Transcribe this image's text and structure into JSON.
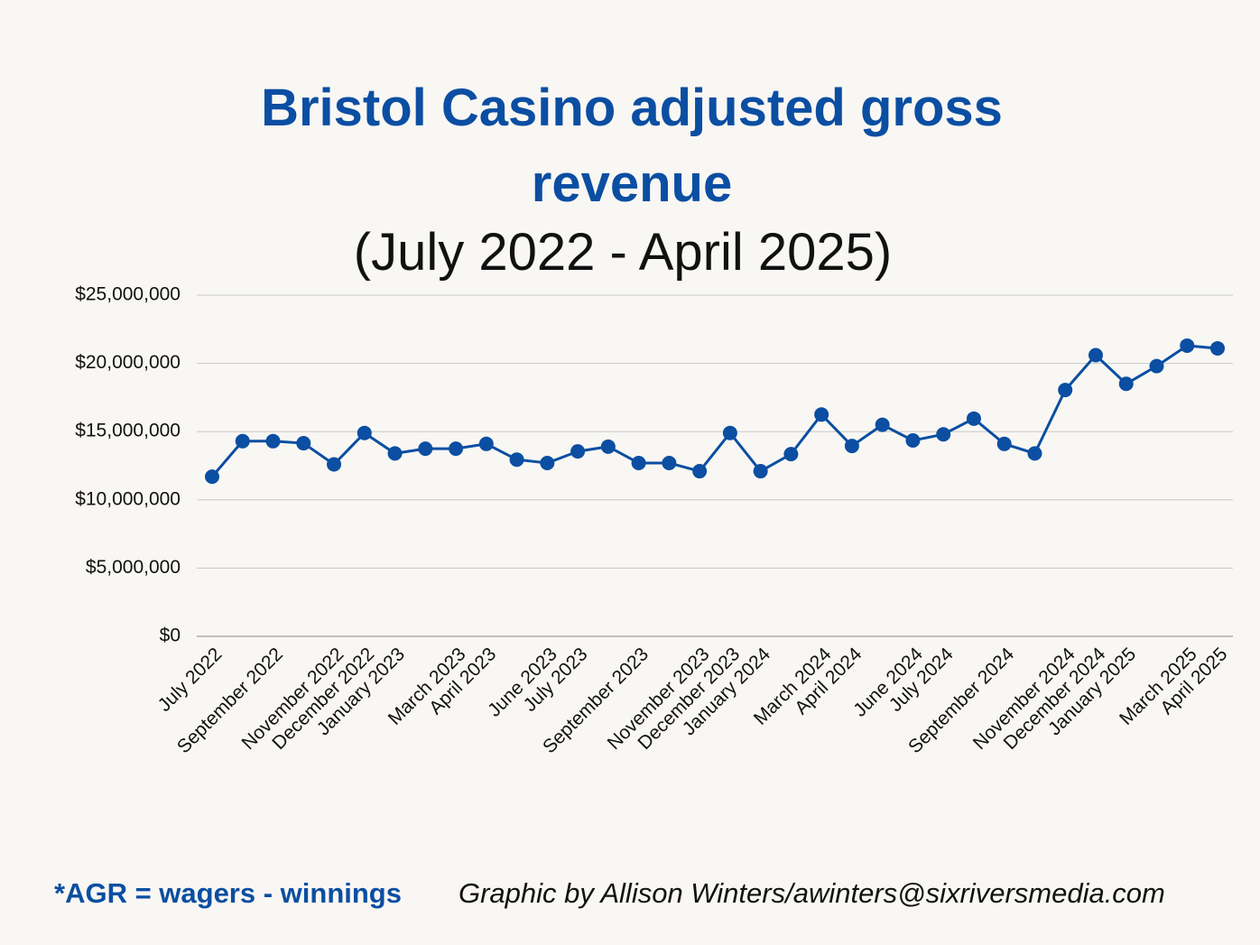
{
  "chart_data": {
    "type": "line",
    "title": "Bristol Casino adjusted gross revenue",
    "subtitle": "(July 2022 - April 2025)",
    "annotations": [
      "*AGR = wagers - winnings",
      "Graphic by Allison Winters/awinters@sixriversmedia.com"
    ],
    "categories": [
      "July 2022",
      null,
      "September 2022",
      null,
      "November 2022",
      "December 2022",
      "January 2023",
      null,
      "March 2023",
      "April 2023",
      null,
      "June 2023",
      "July 2023",
      null,
      "September 2023",
      null,
      "November 2023",
      "December 2023",
      "January 2024",
      null,
      "March 2024",
      "April 2024",
      null,
      "June 2024",
      "July 2024",
      null,
      "September 2024",
      null,
      "November 2024",
      "December 2024",
      "January 2025",
      null,
      "March 2025",
      "April 2025"
    ],
    "series": [
      {
        "color": "#0b4ea2",
        "values": [
          11700000,
          14300000,
          14300000,
          14150000,
          12600000,
          14900000,
          13400000,
          13750000,
          13750000,
          14100000,
          12950000,
          12700000,
          13550000,
          13900000,
          12700000,
          12700000,
          12100000,
          14900000,
          12100000,
          13350000,
          16250000,
          13950000,
          15500000,
          14350000,
          14800000,
          15950000,
          14100000,
          13400000,
          18050000,
          20600000,
          18500000,
          19800000,
          21300000,
          21100000
        ]
      }
    ],
    "ylim": [
      0,
      25000000
    ],
    "yticks": [
      {
        "value": 0,
        "label": "$0"
      },
      {
        "value": 5000000,
        "label": "$5,000,000"
      },
      {
        "value": 10000000,
        "label": "$10,000,000"
      },
      {
        "value": 15000000,
        "label": "$15,000,000"
      },
      {
        "value": 20000000,
        "label": "$20,000,000"
      },
      {
        "value": 25000000,
        "label": "$25,000,000"
      }
    ],
    "grid": true
  }
}
